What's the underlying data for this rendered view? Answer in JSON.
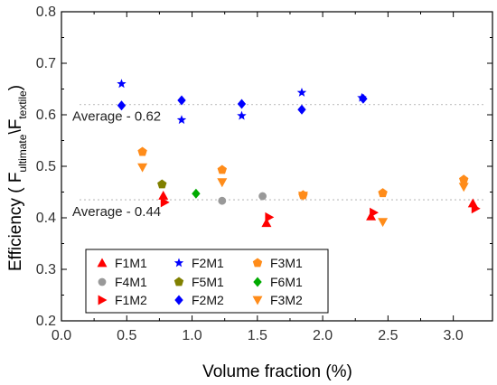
{
  "chart_data": {
    "type": "scatter",
    "xlabel": "Volume fraction (%)",
    "ylabel": {
      "prefix": "Efficiency ( F",
      "sub1": "ultimate",
      "mid": "\\F",
      "sub2": "textile",
      "suffix": ")"
    },
    "xlim": [
      0.0,
      3.3
    ],
    "ylim": [
      0.2,
      0.8
    ],
    "x_ticks": [
      "0.0",
      "0.5",
      "1.0",
      "1.5",
      "2.0",
      "2.5",
      "3.0"
    ],
    "y_ticks": [
      "0.2",
      "0.3",
      "0.4",
      "0.5",
      "0.6",
      "0.7",
      "0.8"
    ],
    "legend_position": "bottom-left",
    "grid": false,
    "reference_lines": [
      {
        "y": 0.62,
        "label": "Average - 0.62"
      },
      {
        "y": 0.435,
        "label": "Average - 0.44"
      }
    ],
    "series": [
      {
        "name": "F1M1",
        "marker": "triangle-up",
        "color": "#ff0000",
        "points": [
          [
            0.78,
            0.443
          ],
          [
            1.57,
            0.39
          ],
          [
            2.37,
            0.403
          ],
          [
            3.15,
            0.428
          ]
        ]
      },
      {
        "name": "F2M1",
        "marker": "star",
        "color": "#0000ff",
        "points": [
          [
            0.46,
            0.66
          ],
          [
            0.92,
            0.59
          ],
          [
            1.38,
            0.598
          ],
          [
            1.84,
            0.643
          ],
          [
            2.3,
            0.633
          ]
        ]
      },
      {
        "name": "F3M1",
        "marker": "pentagon",
        "color": "#ff8c1a",
        "points": [
          [
            0.62,
            0.528
          ],
          [
            1.23,
            0.493
          ],
          [
            1.85,
            0.444
          ],
          [
            2.46,
            0.448
          ],
          [
            3.08,
            0.474
          ]
        ]
      },
      {
        "name": "F4M1",
        "marker": "circle",
        "color": "#999999",
        "points": [
          [
            1.23,
            0.433
          ],
          [
            1.54,
            0.442
          ]
        ]
      },
      {
        "name": "F5M1",
        "marker": "pentagon",
        "color": "#808000",
        "points": [
          [
            0.77,
            0.465
          ]
        ]
      },
      {
        "name": "F6M1",
        "marker": "diamond",
        "color": "#00aa00",
        "points": [
          [
            1.03,
            0.447
          ]
        ]
      },
      {
        "name": "F1M2",
        "marker": "triangle-right",
        "color": "#ff0000",
        "points": [
          [
            0.79,
            0.43
          ],
          [
            1.59,
            0.401
          ],
          [
            2.39,
            0.41
          ],
          [
            3.17,
            0.418
          ]
        ]
      },
      {
        "name": "F2M2",
        "marker": "diamond",
        "color": "#0000ff",
        "points": [
          [
            0.46,
            0.618
          ],
          [
            0.92,
            0.628
          ],
          [
            1.38,
            0.621
          ],
          [
            1.84,
            0.61
          ],
          [
            2.31,
            0.631
          ]
        ]
      },
      {
        "name": "F3M2",
        "marker": "triangle-down",
        "color": "#ff8c1a",
        "points": [
          [
            0.62,
            0.498
          ],
          [
            1.23,
            0.469
          ],
          [
            1.85,
            0.443
          ],
          [
            2.46,
            0.392
          ],
          [
            3.08,
            0.46
          ]
        ]
      }
    ]
  }
}
